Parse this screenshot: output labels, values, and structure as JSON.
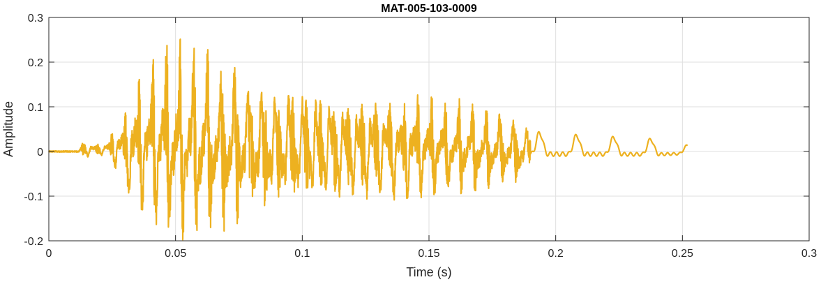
{
  "chart_data": {
    "type": "line",
    "title": "MAT-005-103-0009",
    "xlabel": "Time (s)",
    "ylabel": "Amplitude",
    "xlim": [
      0,
      0.3
    ],
    "ylim": [
      -0.2,
      0.3
    ],
    "xticks": [
      0,
      0.05,
      0.1,
      0.15,
      0.2,
      0.25,
      0.3
    ],
    "xtick_labels": [
      "0",
      "0.05",
      "0.1",
      "0.15",
      "0.2",
      "0.25",
      "0.3"
    ],
    "yticks": [
      -0.2,
      -0.1,
      0,
      0.1,
      0.2,
      0.3
    ],
    "ytick_labels": [
      "-0.2",
      "-0.1",
      "0",
      "0.1",
      "0.2",
      "0.3"
    ],
    "grid": true,
    "legend": "none",
    "series": [
      {
        "color": "#EDB120",
        "duration": 0.252,
        "envelope": [
          [
            0.0,
            0.002
          ],
          [
            0.012,
            0.004
          ],
          [
            0.013,
            0.025
          ],
          [
            0.018,
            0.018
          ],
          [
            0.022,
            0.02
          ],
          [
            0.026,
            0.06
          ],
          [
            0.03,
            0.09
          ],
          [
            0.033,
            0.2
          ],
          [
            0.036,
            0.18
          ],
          [
            0.04,
            0.23
          ],
          [
            0.045,
            0.26
          ],
          [
            0.05,
            0.26
          ],
          [
            0.055,
            0.26
          ],
          [
            0.06,
            0.27
          ],
          [
            0.065,
            0.25
          ],
          [
            0.07,
            0.24
          ],
          [
            0.075,
            0.23
          ],
          [
            0.08,
            0.21
          ],
          [
            0.09,
            0.19
          ],
          [
            0.1,
            0.18
          ],
          [
            0.11,
            0.17
          ],
          [
            0.12,
            0.16
          ],
          [
            0.13,
            0.16
          ],
          [
            0.14,
            0.15
          ],
          [
            0.15,
            0.14
          ],
          [
            0.16,
            0.13
          ],
          [
            0.17,
            0.12
          ],
          [
            0.18,
            0.1
          ],
          [
            0.187,
            0.09
          ],
          [
            0.19,
            0.045
          ],
          [
            0.2,
            0.04
          ],
          [
            0.22,
            0.035
          ],
          [
            0.24,
            0.03
          ],
          [
            0.25,
            0.02
          ],
          [
            0.252,
            0.015
          ]
        ],
        "offset": [
          [
            0.0,
            0.0
          ],
          [
            0.026,
            0.005
          ],
          [
            0.187,
            0.0
          ],
          [
            0.19,
            0.005
          ],
          [
            0.252,
            0.0
          ]
        ]
      }
    ]
  }
}
